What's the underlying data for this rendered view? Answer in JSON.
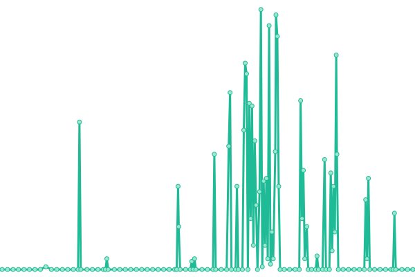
{
  "chart_data": {
    "type": "line",
    "x": [
      0,
      8,
      16,
      24,
      32,
      40,
      48,
      56,
      64,
      72,
      80,
      88,
      96,
      104,
      111,
      113,
      115,
      124,
      132,
      140,
      148,
      151,
      153,
      155,
      164,
      172,
      180,
      188,
      196,
      204,
      212,
      220,
      228,
      236,
      244,
      252,
      255,
      257,
      258,
      260,
      268,
      275,
      277,
      279,
      281,
      283,
      292,
      300,
      308,
      310,
      312,
      320,
      328,
      331,
      333,
      335,
      341,
      343,
      345,
      351,
      353,
      355,
      357,
      359,
      361,
      363,
      365,
      367,
      369,
      371,
      373,
      376,
      378,
      380,
      382,
      384,
      386,
      388,
      390,
      392,
      394,
      396,
      399,
      400,
      402,
      404,
      406,
      412,
      420,
      428,
      434,
      436,
      438,
      440,
      442,
      445,
      447,
      452,
      458,
      460,
      462,
      468,
      471,
      473,
      478,
      480,
      482,
      484,
      486,
      488,
      489,
      491,
      498,
      506,
      514,
      522,
      529,
      531,
      533,
      535,
      537,
      544,
      552,
      560,
      568,
      571,
      573,
      575,
      584,
      592,
      600
    ],
    "series": [
      {
        "color": "#1fba96",
        "values": [
          1,
          1,
          1,
          1,
          1,
          1,
          1,
          1,
          2,
          1,
          1,
          1,
          1,
          1,
          1,
          56,
          1,
          1,
          1,
          1,
          1,
          1,
          5,
          1,
          1,
          1,
          1,
          1,
          1,
          1,
          1,
          1,
          1,
          1,
          1,
          1,
          1,
          32,
          17,
          1,
          1,
          1,
          4,
          1,
          5,
          1,
          1,
          1,
          1,
          44,
          1,
          1,
          1,
          47,
          67,
          1,
          1,
          32,
          1,
          1,
          53,
          78,
          74,
          1,
          63,
          20,
          62,
          10,
          49,
          25,
          1,
          30,
          98,
          2,
          34,
          10,
          35,
          5,
          92,
          3,
          15,
          5,
          45,
          96,
          88,
          32,
          1,
          1,
          1,
          1,
          1,
          64,
          20,
          38,
          5,
          17,
          1,
          1,
          1,
          6,
          1,
          1,
          42,
          1,
          1,
          37,
          8,
          32,
          15,
          81,
          44,
          1,
          1,
          1,
          1,
          1,
          1,
          27,
          5,
          35,
          1,
          1,
          1,
          1,
          1,
          1,
          22,
          1,
          1,
          1,
          1
        ]
      }
    ],
    "xlim": [
      0,
      600
    ],
    "ylim": [
      0,
      100
    ]
  }
}
